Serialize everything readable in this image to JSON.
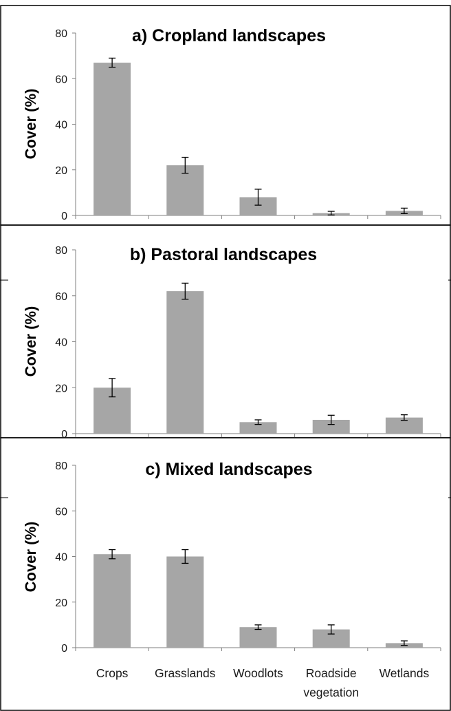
{
  "chart_data": [
    {
      "type": "bar",
      "title": "a) Cropland landscapes",
      "ylabel": "Cover (%)",
      "xlabel": "",
      "ylim": [
        0,
        80
      ],
      "yticks": [
        "0",
        "20",
        "40",
        "60",
        "80"
      ],
      "categories": [
        "Crops",
        "Grasslands",
        "Woodlots",
        "Roadside vegetation",
        "Wetlands"
      ],
      "values": [
        67,
        22,
        8,
        1,
        2
      ],
      "errors": [
        2,
        3.5,
        3.5,
        0.8,
        1.2
      ],
      "colors": {
        "bar": "#a6a6a6",
        "error": "#000000",
        "axis": "#7f7f7f"
      }
    },
    {
      "type": "bar",
      "title": "b) Pastoral landscapes",
      "ylabel": "Cover (%)",
      "xlabel": "",
      "ylim": [
        0,
        80
      ],
      "yticks": [
        "0",
        "20",
        "40",
        "60",
        "80"
      ],
      "categories": [
        "Crops",
        "Grasslands",
        "Woodlots",
        "Roadside vegetation",
        "Wetlands"
      ],
      "values": [
        20,
        62,
        5,
        6,
        7
      ],
      "errors": [
        4,
        3.5,
        1,
        2,
        1.2
      ],
      "colors": {
        "bar": "#a6a6a6",
        "error": "#000000",
        "axis": "#7f7f7f"
      }
    },
    {
      "type": "bar",
      "title": "c) Mixed landscapes",
      "ylabel": "Cover (%)",
      "xlabel": "",
      "ylim": [
        0,
        80
      ],
      "yticks": [
        "0",
        "20",
        "40",
        "60",
        "80"
      ],
      "categories": [
        "Crops",
        "Grasslands",
        "Woodlots",
        "Roadside vegetation",
        "Wetlands"
      ],
      "category_lines": [
        [
          "Crops"
        ],
        [
          "Grasslands"
        ],
        [
          "Woodlots"
        ],
        [
          "Roadside",
          "vegetation"
        ],
        [
          "Wetlands"
        ]
      ],
      "values": [
        41,
        40,
        9,
        8,
        2
      ],
      "errors": [
        2,
        3,
        1,
        2,
        1
      ],
      "colors": {
        "bar": "#a6a6a6",
        "error": "#000000",
        "axis": "#7f7f7f"
      }
    }
  ]
}
